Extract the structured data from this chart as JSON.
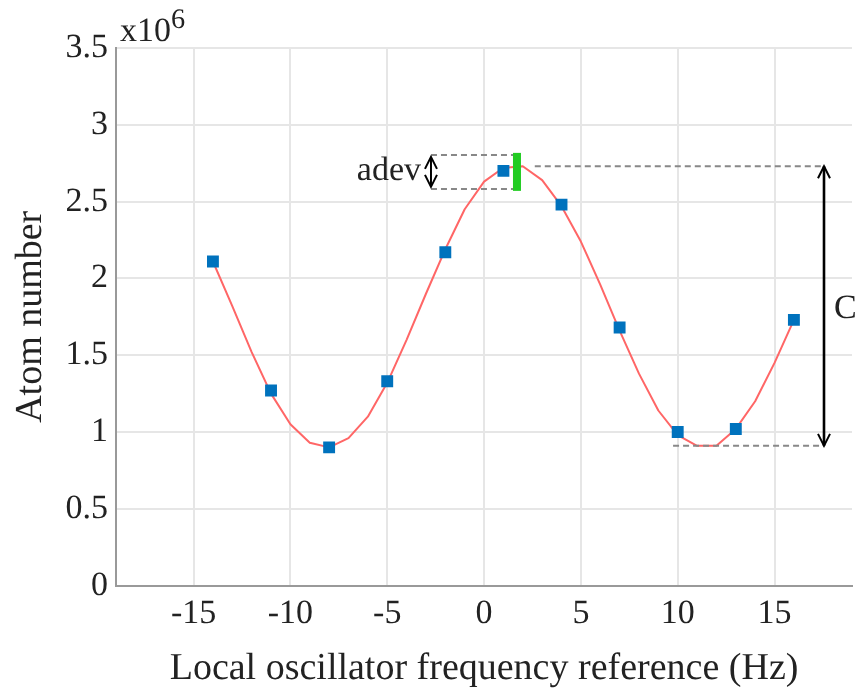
{
  "chart_data": {
    "type": "scatter",
    "xlabel": "Local oscillator frequency reference (Hz)",
    "ylabel": "Atom number",
    "annotations": [
      {
        "text": "adev",
        "x": 1.7,
        "y": 2.7
      },
      "C",
      "x10$^{6}$"
    ],
    "xlim": [
      -19,
      19
    ],
    "xticks": [
      -15,
      -10,
      -5,
      0,
      5,
      10,
      15
    ],
    "ylim": [
      0,
      3.5
    ],
    "yticks": [
      0,
      0.5,
      1,
      1.5,
      2,
      2.5,
      3,
      3.5
    ],
    "grid": true,
    "legend": false,
    "series": [
      {
        "color": "#0072bd",
        "marker": "square",
        "x": [
          -14,
          -11,
          -8,
          -5,
          -2,
          1,
          4,
          7,
          10,
          13,
          16
        ],
        "values": [
          2.11,
          1.27,
          0.9,
          1.33,
          2.17,
          2.7,
          2.48,
          1.68,
          1.0,
          1.02,
          1.73
        ]
      },
      {
        "type": "line",
        "color": "#ff6666",
        "marker": "none",
        "x": [
          -14,
          -13,
          -12,
          -11,
          -10,
          -9,
          -8,
          -7,
          -6,
          -5,
          -4,
          -3,
          -2,
          -1,
          0,
          1,
          2,
          3,
          4,
          5,
          6,
          7,
          8,
          9,
          10,
          11,
          12,
          13,
          14,
          15,
          16
        ],
        "values": [
          2.11,
          1.82,
          1.52,
          1.25,
          1.05,
          0.93,
          0.9,
          0.96,
          1.1,
          1.32,
          1.6,
          1.9,
          2.19,
          2.45,
          2.63,
          2.72,
          2.73,
          2.64,
          2.47,
          2.24,
          1.96,
          1.66,
          1.38,
          1.14,
          0.98,
          0.91,
          0.91,
          1.02,
          1.2,
          1.45,
          1.73
        ]
      }
    ]
  }
}
